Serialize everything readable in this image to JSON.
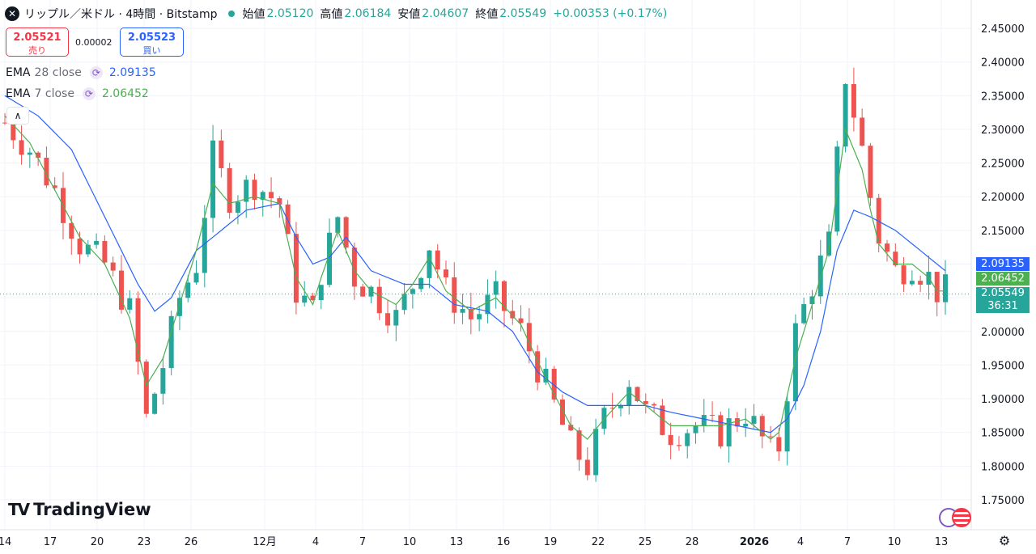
{
  "header": {
    "symbol_icon": "x-logo-icon",
    "title": "リップル／米ドル · 4時間 · Bitstamp",
    "open_label": "始値",
    "open_value": "2.05120",
    "high_label": "高値",
    "high_value": "2.06184",
    "low_label": "安値",
    "low_value": "2.04607",
    "close_label": "終値",
    "close_value": "2.05549",
    "change": "+0.00353 (+0.17%)"
  },
  "trade": {
    "sell_price": "2.05521",
    "sell_label": "売り",
    "spread": "0.00002",
    "buy_price": "2.05523",
    "buy_label": "買い"
  },
  "indicators": [
    {
      "name": "EMA",
      "params": "28 close",
      "value": "2.09135",
      "color": "#2962ff"
    },
    {
      "name": "EMA",
      "params": "7 close",
      "value": "2.06452",
      "color": "#4caf50"
    }
  ],
  "price_badges": {
    "ema28": "2.09135",
    "ema7": "2.06452",
    "last": "2.05549",
    "countdown": "36:31"
  },
  "logo": "TradingView",
  "chart_data": {
    "type": "candlestick",
    "y_axis": {
      "ticks": [
        "2.45000",
        "2.40000",
        "2.35000",
        "2.30000",
        "2.25000",
        "2.20000",
        "2.15000",
        "2.10000",
        "2.05000",
        "2.00000",
        "1.95000",
        "1.90000",
        "1.85000",
        "1.80000",
        "1.75000"
      ],
      "range": [
        1.725,
        2.475
      ]
    },
    "x_axis": {
      "ticks": [
        "14",
        "17",
        "20",
        "23",
        "26",
        "12月",
        "4",
        "7",
        "10",
        "13",
        "16",
        "19",
        "22",
        "25",
        "28",
        "2026",
        "4",
        "7",
        "10",
        "13"
      ]
    },
    "colors": {
      "up": "#26a69a",
      "down": "#ef5350",
      "ema28": "#2962ff",
      "ema7": "#4caf50"
    },
    "price_path": [
      [
        0,
        2.31
      ],
      [
        3,
        2.27
      ],
      [
        6,
        2.21
      ],
      [
        9,
        2.13
      ],
      [
        12,
        2.1
      ],
      [
        15,
        2.03
      ],
      [
        17,
        1.87
      ],
      [
        19,
        1.95
      ],
      [
        21,
        2.05
      ],
      [
        23,
        2.1
      ],
      [
        25,
        2.26
      ],
      [
        27,
        2.2
      ],
      [
        30,
        2.22
      ],
      [
        33,
        2.19
      ],
      [
        35,
        2.06
      ],
      [
        37,
        2.03
      ],
      [
        38,
        2.09
      ],
      [
        40,
        2.17
      ],
      [
        42,
        2.08
      ],
      [
        44,
        2.06
      ],
      [
        47,
        2.02
      ],
      [
        49,
        2.07
      ],
      [
        51,
        2.13
      ],
      [
        53,
        2.06
      ],
      [
        56,
        2.02
      ],
      [
        59,
        2.05
      ],
      [
        62,
        2.0
      ],
      [
        65,
        1.92
      ],
      [
        68,
        1.83
      ],
      [
        70,
        1.8
      ],
      [
        72,
        1.87
      ],
      [
        75,
        1.93
      ],
      [
        77,
        1.88
      ],
      [
        80,
        1.85
      ],
      [
        83,
        1.86
      ],
      [
        86,
        1.85
      ],
      [
        89,
        1.88
      ],
      [
        92,
        1.82
      ],
      [
        93,
        1.83
      ],
      [
        95,
        2.0
      ],
      [
        97,
        2.07
      ],
      [
        99,
        2.13
      ],
      [
        101,
        2.38
      ],
      [
        103,
        2.27
      ],
      [
        104,
        2.2
      ],
      [
        105,
        2.14
      ],
      [
        107,
        2.09
      ],
      [
        109,
        2.1
      ],
      [
        111,
        2.08
      ],
      [
        112,
        2.06
      ]
    ],
    "ema28_path": [
      [
        0,
        2.35
      ],
      [
        4,
        2.32
      ],
      [
        8,
        2.27
      ],
      [
        12,
        2.17
      ],
      [
        16,
        2.07
      ],
      [
        18,
        2.03
      ],
      [
        20,
        2.05
      ],
      [
        23,
        2.12
      ],
      [
        26,
        2.15
      ],
      [
        29,
        2.18
      ],
      [
        33,
        2.19
      ],
      [
        35,
        2.14
      ],
      [
        37,
        2.1
      ],
      [
        39,
        2.11
      ],
      [
        41,
        2.14
      ],
      [
        44,
        2.09
      ],
      [
        48,
        2.07
      ],
      [
        51,
        2.07
      ],
      [
        54,
        2.04
      ],
      [
        58,
        2.03
      ],
      [
        61,
        2.0
      ],
      [
        64,
        1.94
      ],
      [
        67,
        1.91
      ],
      [
        70,
        1.89
      ],
      [
        73,
        1.89
      ],
      [
        77,
        1.89
      ],
      [
        80,
        1.88
      ],
      [
        84,
        1.87
      ],
      [
        88,
        1.86
      ],
      [
        92,
        1.85
      ],
      [
        94,
        1.87
      ],
      [
        96,
        1.92
      ],
      [
        98,
        2.0
      ],
      [
        100,
        2.12
      ],
      [
        102,
        2.18
      ],
      [
        104,
        2.17
      ],
      [
        107,
        2.15
      ],
      [
        110,
        2.12
      ],
      [
        113,
        2.09
      ]
    ],
    "ema7_path": [
      [
        0,
        2.32
      ],
      [
        3,
        2.28
      ],
      [
        6,
        2.21
      ],
      [
        9,
        2.14
      ],
      [
        12,
        2.1
      ],
      [
        15,
        2.02
      ],
      [
        17,
        1.92
      ],
      [
        19,
        1.96
      ],
      [
        21,
        2.04
      ],
      [
        23,
        2.12
      ],
      [
        25,
        2.22
      ],
      [
        27,
        2.19
      ],
      [
        30,
        2.2
      ],
      [
        33,
        2.19
      ],
      [
        35,
        2.08
      ],
      [
        37,
        2.04
      ],
      [
        38,
        2.08
      ],
      [
        40,
        2.15
      ],
      [
        42,
        2.09
      ],
      [
        44,
        2.06
      ],
      [
        47,
        2.04
      ],
      [
        49,
        2.07
      ],
      [
        51,
        2.11
      ],
      [
        53,
        2.06
      ],
      [
        56,
        2.03
      ],
      [
        59,
        2.05
      ],
      [
        62,
        2.01
      ],
      [
        65,
        1.93
      ],
      [
        68,
        1.86
      ],
      [
        70,
        1.84
      ],
      [
        72,
        1.87
      ],
      [
        75,
        1.91
      ],
      [
        77,
        1.89
      ],
      [
        80,
        1.86
      ],
      [
        83,
        1.86
      ],
      [
        86,
        1.86
      ],
      [
        89,
        1.87
      ],
      [
        92,
        1.84
      ],
      [
        93,
        1.85
      ],
      [
        95,
        1.96
      ],
      [
        97,
        2.04
      ],
      [
        99,
        2.12
      ],
      [
        101,
        2.3
      ],
      [
        103,
        2.24
      ],
      [
        104,
        2.18
      ],
      [
        105,
        2.13
      ],
      [
        107,
        2.1
      ],
      [
        109,
        2.1
      ],
      [
        111,
        2.08
      ],
      [
        112,
        2.06
      ]
    ]
  }
}
